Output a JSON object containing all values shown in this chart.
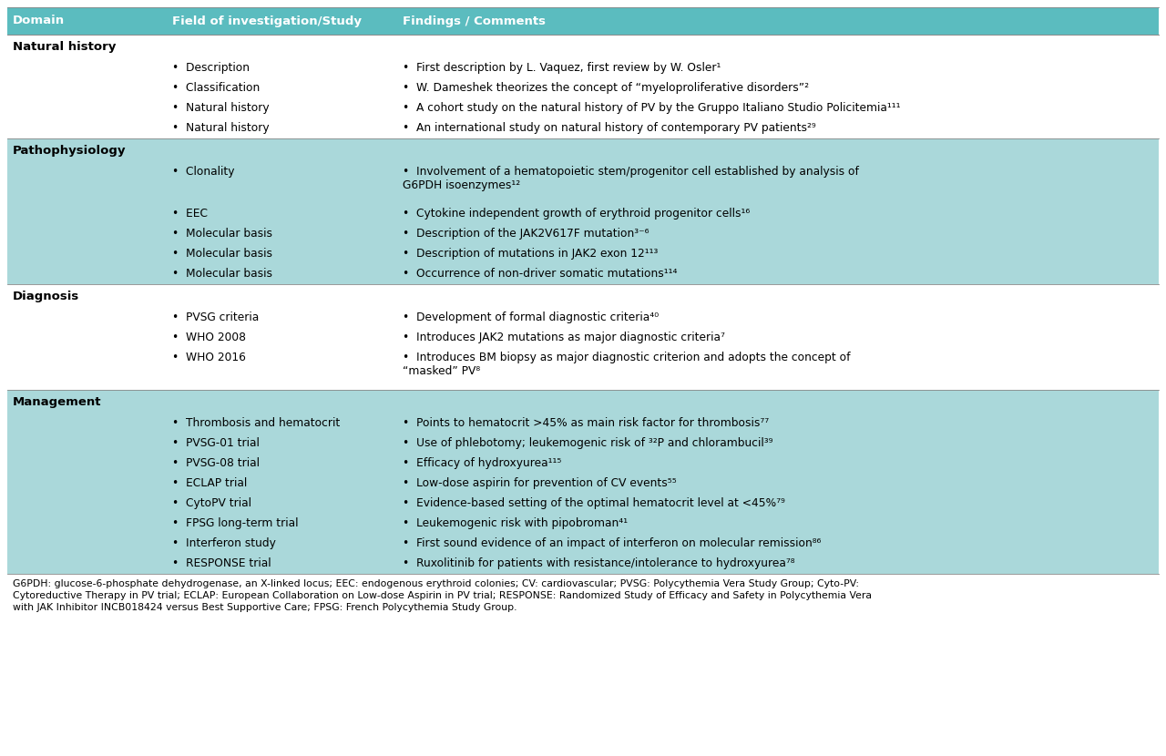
{
  "header_bg": "#5bbcbf",
  "header_text_color": "#ffffff",
  "row_bg_teal": "#aad8da",
  "row_bg_white": "#ffffff",
  "text_color": "#000000",
  "header_cols": [
    "Domain",
    "Field of investigation/Study",
    "Findings / Comments"
  ],
  "sections": [
    {
      "domain": "Natural history",
      "bg": "#ffffff",
      "rows": [
        {
          "field": "Description",
          "finding": "First description by L. Vaquez, first review by W. Osler¹"
        },
        {
          "field": "Classification",
          "finding": "W. Dameshek theorizes the concept of “myeloproliferative disorders”²"
        },
        {
          "field": "Natural history",
          "finding": "A cohort study on the natural history of PV by the Gruppo Italiano Studio Policitemia¹¹¹"
        },
        {
          "field": "Natural history",
          "finding": "An international study on natural history of contemporary PV patients²⁹"
        }
      ]
    },
    {
      "domain": "Pathophysiology",
      "bg": "#aad8da",
      "rows": [
        {
          "field": "Clonality",
          "finding": "Involvement of a hematopoietic stem/progenitor cell established by analysis of\nG6PDH isoenzymes¹²"
        },
        {
          "field": "",
          "finding": ""
        },
        {
          "field": "EEC",
          "finding": "Cytokine independent growth of erythroid progenitor cells¹⁶"
        },
        {
          "field": "Molecular basis",
          "finding": "Description of the JAK2V617F mutation³⁻⁶"
        },
        {
          "field": "Molecular basis",
          "finding": "Description of mutations in JAK2 exon 12¹¹³"
        },
        {
          "field": "Molecular basis",
          "finding": "Occurrence of non-driver somatic mutations¹¹⁴"
        }
      ]
    },
    {
      "domain": "Diagnosis",
      "bg": "#ffffff",
      "rows": [
        {
          "field": "PVSG criteria",
          "finding": "Development of formal diagnostic criteria⁴⁰"
        },
        {
          "field": "WHO 2008",
          "finding": "Introduces JAK2 mutations as major diagnostic criteria⁷"
        },
        {
          "field": "WHO 2016",
          "finding": "Introduces BM biopsy as major diagnostic criterion and adopts the concept of\n“masked” PV⁸"
        },
        {
          "field": "",
          "finding": ""
        }
      ]
    },
    {
      "domain": "Management",
      "bg": "#aad8da",
      "rows": [
        {
          "field": "Thrombosis and hematocrit",
          "finding": "Points to hematocrit >45% as main risk factor for thrombosis⁷⁷"
        },
        {
          "field": "PVSG-01 trial",
          "finding": "Use of phlebotomy; leukemogenic risk of ³²P and chlorambucil³⁹"
        },
        {
          "field": "PVSG-08 trial",
          "finding": "Efficacy of hydroxyurea¹¹⁵"
        },
        {
          "field": "ECLAP trial",
          "finding": "Low-dose aspirin for prevention of CV events⁵⁵"
        },
        {
          "field": "CytoPV trial",
          "finding": "Evidence-based setting of the optimal hematocrit level at <45%⁷⁹"
        },
        {
          "field": "FPSG long-term trial",
          "finding": "Leukemogenic risk with pipobroman⁴¹"
        },
        {
          "field": "Interferon study",
          "finding": "First sound evidence of an impact of interferon on molecular remission⁸⁶"
        },
        {
          "field": "RESPONSE trial",
          "finding": "Ruxolitinib for patients with resistance/intolerance to hydroxyurea⁷⁸"
        }
      ]
    }
  ],
  "footnote_lines": [
    "G6PDH: glucose-6-phosphate dehydrogenase, an X-linked locus; EEC: endogenous erythroid colonies; CV: cardiovascular; PVSG: Polycythemia Vera Study Group; Cyto-PV:",
    "Cytoreductive Therapy in PV trial; ECLAP: European Collaboration on Low-dose Aspirin in PV trial; RESPONSE: Randomized Study of Efficacy and Safety in Polycythemia Vera",
    "with JAK Inhibitor INCB018424 versus Best Supportive Care; FPSG: French Polycythemia Study Group."
  ]
}
